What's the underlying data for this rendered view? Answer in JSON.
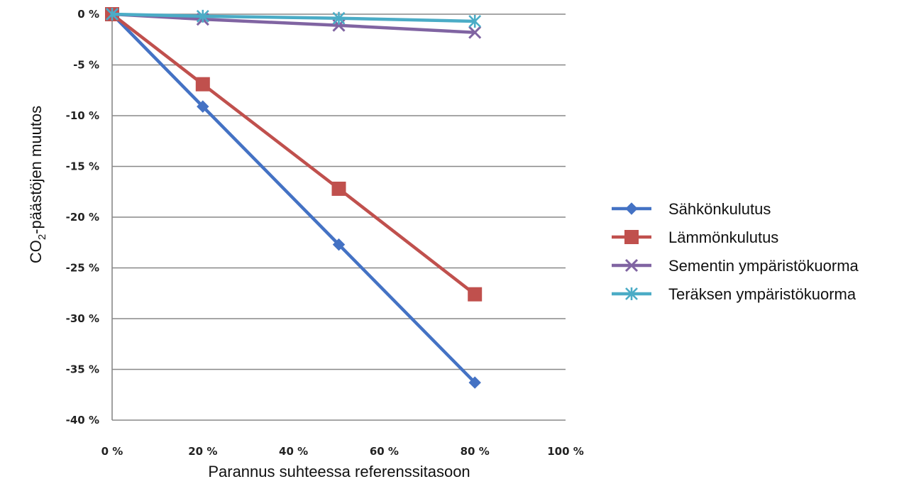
{
  "chart_data": {
    "type": "line",
    "x": [
      0,
      20,
      50,
      80
    ],
    "x_ticks": [
      "0 %",
      "20 %",
      "40 %",
      "60 %",
      "80 %",
      "100 %"
    ],
    "y_ticks": [
      "0 %",
      "-5 %",
      "-10 %",
      "-15 %",
      "-20 %",
      "-25 %",
      "-30 %",
      "-35 %",
      "-40 %"
    ],
    "xlim": [
      0,
      100
    ],
    "ylim": [
      -40,
      0
    ],
    "xlabel": "Parannus suhteessa referenssitasoon",
    "ylabel_main": "CO",
    "ylabel_sub": "2",
    "ylabel_rest": "-päästöjen muutos",
    "grid": "horizontal",
    "legend_position": "right",
    "series": [
      {
        "name": "Sähkönkulutus",
        "values": [
          0,
          -9.1,
          -22.7,
          -36.3
        ],
        "color": "#4472c4",
        "marker": "diamond"
      },
      {
        "name": "Lämmönkulutus",
        "values": [
          0,
          -6.9,
          -17.2,
          -27.6
        ],
        "color": "#c0504d",
        "marker": "square"
      },
      {
        "name": "Sementin ympäristökuorma",
        "values": [
          0,
          -0.5,
          -1.1,
          -1.8
        ],
        "color": "#8064a2",
        "marker": "x"
      },
      {
        "name": "Teräksen ympäristökuorma",
        "values": [
          0,
          -0.2,
          -0.4,
          -0.7
        ],
        "color": "#4bacc6",
        "marker": "star"
      }
    ]
  }
}
